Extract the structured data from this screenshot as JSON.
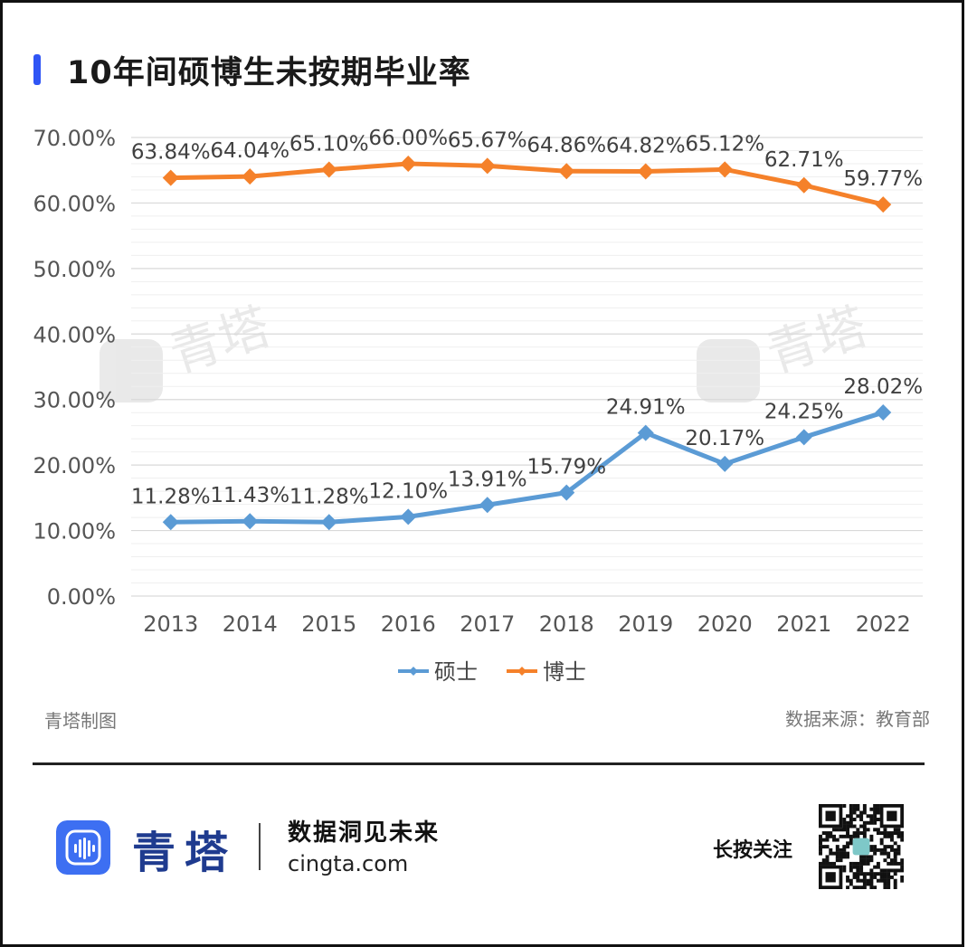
{
  "title": "10年间硕博生未按期毕业率",
  "colors": {
    "accent": "#2f55f5",
    "master": "#5b9bd5",
    "phd": "#f5812a",
    "brand": "#1f3b8f",
    "logo": "#3d6ff2"
  },
  "chart_data": {
    "type": "line",
    "title": "10年间硕博生未按期毕业率",
    "categories": [
      "2013",
      "2014",
      "2015",
      "2016",
      "2017",
      "2018",
      "2019",
      "2020",
      "2021",
      "2022"
    ],
    "y_ticks": [
      "0.00%",
      "10.00%",
      "20.00%",
      "30.00%",
      "40.00%",
      "50.00%",
      "60.00%",
      "70.00%"
    ],
    "ylim": [
      0,
      70
    ],
    "grid": true,
    "legend_position": "bottom",
    "series": [
      {
        "name": "硕士",
        "values": [
          11.28,
          11.43,
          11.28,
          12.1,
          13.91,
          15.79,
          24.91,
          20.17,
          24.25,
          28.02
        ],
        "labels": [
          "11.28%",
          "11.43%",
          "11.28%",
          "12.10%",
          "13.91%",
          "15.79%",
          "24.91%",
          "20.17%",
          "24.25%",
          "28.02%"
        ]
      },
      {
        "name": "博士",
        "values": [
          63.84,
          64.04,
          65.1,
          66.0,
          65.67,
          64.86,
          64.82,
          65.12,
          62.71,
          59.77
        ],
        "labels": [
          "63.84%",
          "64.04%",
          "65.10%",
          "66.00%",
          "65.67%",
          "64.86%",
          "64.82%",
          "65.12%",
          "62.71%",
          "59.77%"
        ]
      }
    ]
  },
  "watermark": "青塔",
  "footer": {
    "left": "青塔制图",
    "right": "数据来源：教育部"
  },
  "brand": {
    "name": "青塔",
    "slogan": "数据洞见未来",
    "domain": "cingta.com",
    "follow": "长按关注",
    "logo_icon": "sound-wave-icon",
    "qr_icon": "qr-code-icon"
  }
}
